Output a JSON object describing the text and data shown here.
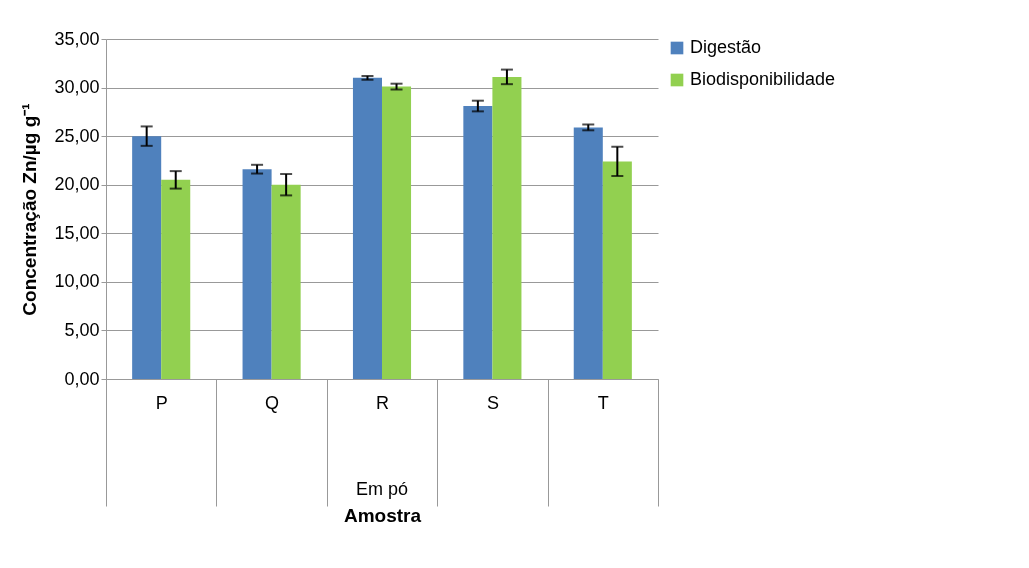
{
  "chart_data": {
    "type": "bar",
    "categories": [
      "P",
      "Q",
      "R",
      "S",
      "T"
    ],
    "series": [
      {
        "name": "Digestão",
        "color": "#4f81bd",
        "values": [
          25.0,
          21.6,
          31.0,
          28.1,
          25.9
        ],
        "errors": [
          1.0,
          0.45,
          0.2,
          0.55,
          0.3
        ]
      },
      {
        "name": "Biodisponibilidade",
        "color": "#92d050",
        "values": [
          20.5,
          20.0,
          30.1,
          31.1,
          22.4
        ],
        "errors": [
          0.9,
          1.1,
          0.3,
          0.75,
          1.5
        ]
      }
    ],
    "xlabel": "Amostra",
    "ylabel": "Concentração Zn/µg g⁻¹",
    "annotations": [
      "Em pó"
    ],
    "ylim": [
      0,
      35
    ],
    "yticks": [
      {
        "value": 0,
        "label": "0,00"
      },
      {
        "value": 5,
        "label": "5,00"
      },
      {
        "value": 10,
        "label": "10,00"
      },
      {
        "value": 15,
        "label": "15,00"
      },
      {
        "value": 20,
        "label": "20,00"
      },
      {
        "value": 25,
        "label": "25,00"
      },
      {
        "value": 30,
        "label": "30,00"
      },
      {
        "value": 35,
        "label": "35,00"
      }
    ],
    "grid": "y",
    "legend": "right"
  }
}
